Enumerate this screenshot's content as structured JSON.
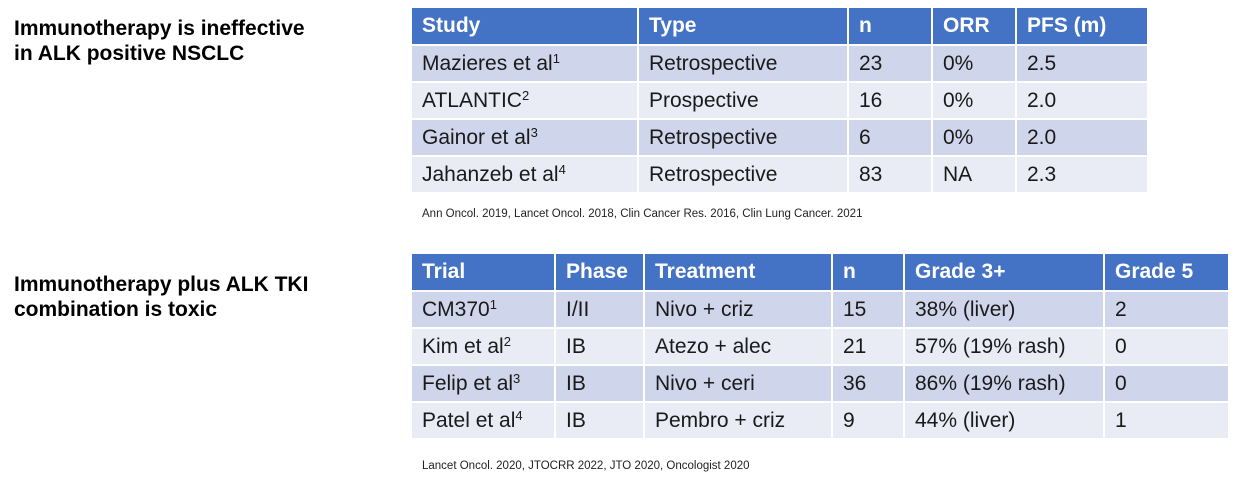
{
  "section1": {
    "heading_line1": "Immunotherapy is ineffective",
    "heading_line2": "in ALK positive NSCLC",
    "table": {
      "headers": [
        "Study",
        "Type",
        "n",
        "ORR",
        "PFS (m)"
      ],
      "rows": [
        {
          "study": "Mazieres et al",
          "sup": "1",
          "type": "Retrospective",
          "n": "23",
          "orr": "0%",
          "pfs": "2.5"
        },
        {
          "study": "ATLANTIC",
          "sup": "2",
          "type": "Prospective",
          "n": "16",
          "orr": "0%",
          "pfs": "2.0"
        },
        {
          "study": "Gainor et al",
          "sup": "3",
          "type": "Retrospective",
          "n": "6",
          "orr": "0%",
          "pfs": "2.0"
        },
        {
          "study": "Jahanzeb et al",
          "sup": "4",
          "type": "Retrospective",
          "n": "83",
          "orr": "NA",
          "pfs": "2.3"
        }
      ]
    },
    "reference": "Ann Oncol. 2019, Lancet Oncol. 2018, Clin Cancer Res. 2016, Clin Lung Cancer. 2021"
  },
  "section2": {
    "heading_line1": "Immunotherapy plus ALK TKI",
    "heading_line2": "combination is toxic",
    "table": {
      "headers": [
        "Trial",
        "Phase",
        "Treatment",
        "n",
        "Grade 3+",
        "Grade 5"
      ],
      "rows": [
        {
          "trial": "CM370",
          "sup": "1",
          "phase": "I/II",
          "treatment": "Nivo + criz",
          "n": "15",
          "grade3": "38% (liver)",
          "grade5": "2"
        },
        {
          "trial": "Kim et al",
          "sup": "2",
          "phase": "IB",
          "treatment": "Atezo + alec",
          "n": "21",
          "grade3": "57% (19% rash)",
          "grade5": "0"
        },
        {
          "trial": "Felip et al",
          "sup": "3",
          "phase": "IB",
          "treatment": "Nivo + ceri",
          "n": "36",
          "grade3": "86% (19% rash)",
          "grade5": "0"
        },
        {
          "trial": "Patel et al",
          "sup": "4",
          "phase": "IB",
          "treatment": "Pembro + criz",
          "n": "9",
          "grade3": "44% (liver)",
          "grade5": "1"
        }
      ]
    },
    "reference": "Lancet Oncol. 2020, JTOCRR 2022, JTO 2020, Oncologist 2020"
  }
}
